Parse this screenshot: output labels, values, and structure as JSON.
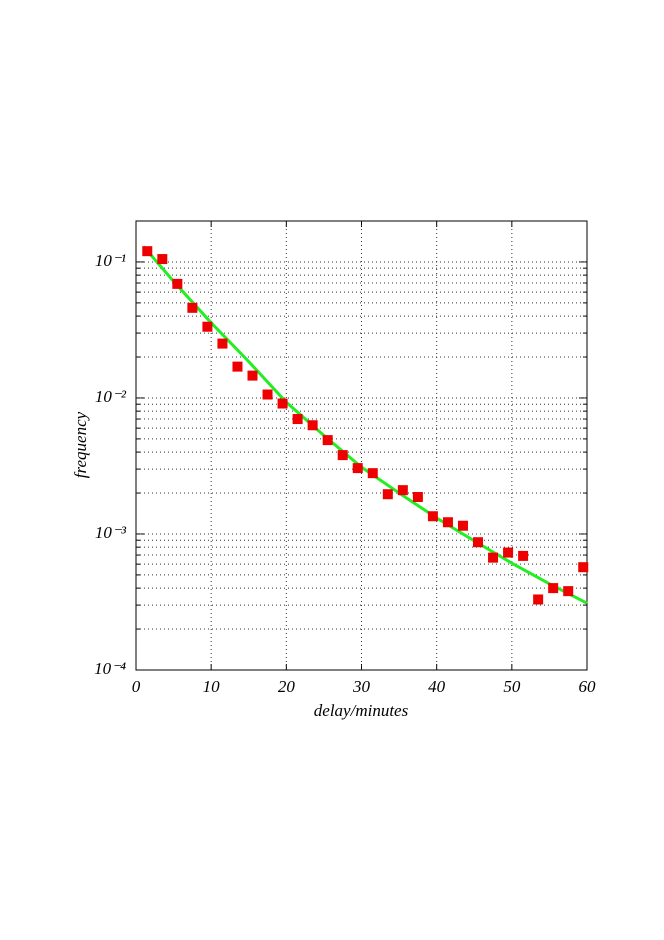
{
  "chart_data": {
    "type": "scatter",
    "xlabel": "delay/minutes",
    "ylabel": "frequency",
    "xlim": [
      0,
      60
    ],
    "xticks": [
      0,
      10,
      20,
      30,
      40,
      50,
      60
    ],
    "ylim": [
      0.0001,
      0.2
    ],
    "yscale": "log",
    "yticks": [
      {
        "value": 0.0001,
        "label": "10⁻⁴"
      },
      {
        "value": 0.001,
        "label": "10⁻³"
      },
      {
        "value": 0.01,
        "label": "10⁻²"
      },
      {
        "value": 0.1,
        "label": "10⁻¹"
      }
    ],
    "yminorticks": [
      0.0002,
      0.0003,
      0.0004,
      0.0005,
      0.0006,
      0.0007,
      0.0008,
      0.0009,
      0.002,
      0.003,
      0.004,
      0.005,
      0.006,
      0.007,
      0.008,
      0.009,
      0.02,
      0.03,
      0.04,
      0.05,
      0.06,
      0.07,
      0.08,
      0.09
    ],
    "grid": true,
    "series": [
      {
        "type": "scatter",
        "color": "#ee0000",
        "x": [
          1.5,
          3.5,
          5.5,
          7.5,
          9.5,
          11.5,
          13.5,
          15.5,
          17.5,
          19.5,
          21.5,
          23.5,
          25.5,
          27.5,
          29.5,
          31.5,
          33.5,
          35.5,
          37.5,
          39.5,
          41.5,
          43.5,
          45.5,
          47.5,
          49.5,
          51.5,
          53.5,
          55.5,
          57.5,
          59.5
        ],
        "values": [
          0.12,
          0.105,
          0.069,
          0.046,
          0.0334,
          0.0251,
          0.017,
          0.0146,
          0.0106,
          0.0091,
          0.007,
          0.0063,
          0.0049,
          0.0038,
          0.00305,
          0.0028,
          0.00196,
          0.0021,
          0.00187,
          0.00135,
          0.00122,
          0.00115,
          0.00087,
          0.00067,
          0.00073,
          0.00069,
          0.00033,
          0.0004,
          0.00038,
          0.00057
        ]
      },
      {
        "type": "line",
        "color": "#22ee22",
        "x": [
          1,
          5,
          10,
          15,
          20,
          25,
          30,
          35,
          40,
          45,
          50,
          55,
          60
        ],
        "values": [
          0.13,
          0.072,
          0.0357,
          0.0185,
          0.0093,
          0.0053,
          0.0031,
          0.002,
          0.00131,
          0.00089,
          0.00061,
          0.00043,
          0.00031
        ]
      }
    ]
  }
}
